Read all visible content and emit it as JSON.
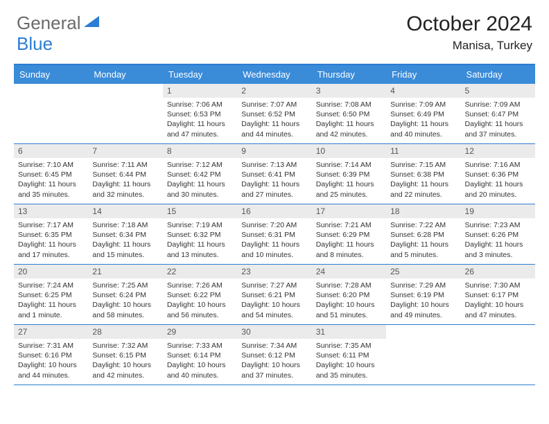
{
  "logo": {
    "general": "General",
    "blue": "Blue"
  },
  "title": "October 2024",
  "location": "Manisa, Turkey",
  "colors": {
    "accent": "#2d7dd2",
    "header_bg": "#3a8bd8",
    "daynum_bg": "#ebebeb",
    "text": "#333333",
    "logo_gray": "#6a6a6a"
  },
  "day_headers": [
    "Sunday",
    "Monday",
    "Tuesday",
    "Wednesday",
    "Thursday",
    "Friday",
    "Saturday"
  ],
  "weeks": [
    [
      {
        "n": "",
        "sunrise": "",
        "sunset": "",
        "daylight": ""
      },
      {
        "n": "",
        "sunrise": "",
        "sunset": "",
        "daylight": ""
      },
      {
        "n": "1",
        "sunrise": "Sunrise: 7:06 AM",
        "sunset": "Sunset: 6:53 PM",
        "daylight": "Daylight: 11 hours and 47 minutes."
      },
      {
        "n": "2",
        "sunrise": "Sunrise: 7:07 AM",
        "sunset": "Sunset: 6:52 PM",
        "daylight": "Daylight: 11 hours and 44 minutes."
      },
      {
        "n": "3",
        "sunrise": "Sunrise: 7:08 AM",
        "sunset": "Sunset: 6:50 PM",
        "daylight": "Daylight: 11 hours and 42 minutes."
      },
      {
        "n": "4",
        "sunrise": "Sunrise: 7:09 AM",
        "sunset": "Sunset: 6:49 PM",
        "daylight": "Daylight: 11 hours and 40 minutes."
      },
      {
        "n": "5",
        "sunrise": "Sunrise: 7:09 AM",
        "sunset": "Sunset: 6:47 PM",
        "daylight": "Daylight: 11 hours and 37 minutes."
      }
    ],
    [
      {
        "n": "6",
        "sunrise": "Sunrise: 7:10 AM",
        "sunset": "Sunset: 6:45 PM",
        "daylight": "Daylight: 11 hours and 35 minutes."
      },
      {
        "n": "7",
        "sunrise": "Sunrise: 7:11 AM",
        "sunset": "Sunset: 6:44 PM",
        "daylight": "Daylight: 11 hours and 32 minutes."
      },
      {
        "n": "8",
        "sunrise": "Sunrise: 7:12 AM",
        "sunset": "Sunset: 6:42 PM",
        "daylight": "Daylight: 11 hours and 30 minutes."
      },
      {
        "n": "9",
        "sunrise": "Sunrise: 7:13 AM",
        "sunset": "Sunset: 6:41 PM",
        "daylight": "Daylight: 11 hours and 27 minutes."
      },
      {
        "n": "10",
        "sunrise": "Sunrise: 7:14 AM",
        "sunset": "Sunset: 6:39 PM",
        "daylight": "Daylight: 11 hours and 25 minutes."
      },
      {
        "n": "11",
        "sunrise": "Sunrise: 7:15 AM",
        "sunset": "Sunset: 6:38 PM",
        "daylight": "Daylight: 11 hours and 22 minutes."
      },
      {
        "n": "12",
        "sunrise": "Sunrise: 7:16 AM",
        "sunset": "Sunset: 6:36 PM",
        "daylight": "Daylight: 11 hours and 20 minutes."
      }
    ],
    [
      {
        "n": "13",
        "sunrise": "Sunrise: 7:17 AM",
        "sunset": "Sunset: 6:35 PM",
        "daylight": "Daylight: 11 hours and 17 minutes."
      },
      {
        "n": "14",
        "sunrise": "Sunrise: 7:18 AM",
        "sunset": "Sunset: 6:34 PM",
        "daylight": "Daylight: 11 hours and 15 minutes."
      },
      {
        "n": "15",
        "sunrise": "Sunrise: 7:19 AM",
        "sunset": "Sunset: 6:32 PM",
        "daylight": "Daylight: 11 hours and 13 minutes."
      },
      {
        "n": "16",
        "sunrise": "Sunrise: 7:20 AM",
        "sunset": "Sunset: 6:31 PM",
        "daylight": "Daylight: 11 hours and 10 minutes."
      },
      {
        "n": "17",
        "sunrise": "Sunrise: 7:21 AM",
        "sunset": "Sunset: 6:29 PM",
        "daylight": "Daylight: 11 hours and 8 minutes."
      },
      {
        "n": "18",
        "sunrise": "Sunrise: 7:22 AM",
        "sunset": "Sunset: 6:28 PM",
        "daylight": "Daylight: 11 hours and 5 minutes."
      },
      {
        "n": "19",
        "sunrise": "Sunrise: 7:23 AM",
        "sunset": "Sunset: 6:26 PM",
        "daylight": "Daylight: 11 hours and 3 minutes."
      }
    ],
    [
      {
        "n": "20",
        "sunrise": "Sunrise: 7:24 AM",
        "sunset": "Sunset: 6:25 PM",
        "daylight": "Daylight: 11 hours and 1 minute."
      },
      {
        "n": "21",
        "sunrise": "Sunrise: 7:25 AM",
        "sunset": "Sunset: 6:24 PM",
        "daylight": "Daylight: 10 hours and 58 minutes."
      },
      {
        "n": "22",
        "sunrise": "Sunrise: 7:26 AM",
        "sunset": "Sunset: 6:22 PM",
        "daylight": "Daylight: 10 hours and 56 minutes."
      },
      {
        "n": "23",
        "sunrise": "Sunrise: 7:27 AM",
        "sunset": "Sunset: 6:21 PM",
        "daylight": "Daylight: 10 hours and 54 minutes."
      },
      {
        "n": "24",
        "sunrise": "Sunrise: 7:28 AM",
        "sunset": "Sunset: 6:20 PM",
        "daylight": "Daylight: 10 hours and 51 minutes."
      },
      {
        "n": "25",
        "sunrise": "Sunrise: 7:29 AM",
        "sunset": "Sunset: 6:19 PM",
        "daylight": "Daylight: 10 hours and 49 minutes."
      },
      {
        "n": "26",
        "sunrise": "Sunrise: 7:30 AM",
        "sunset": "Sunset: 6:17 PM",
        "daylight": "Daylight: 10 hours and 47 minutes."
      }
    ],
    [
      {
        "n": "27",
        "sunrise": "Sunrise: 7:31 AM",
        "sunset": "Sunset: 6:16 PM",
        "daylight": "Daylight: 10 hours and 44 minutes."
      },
      {
        "n": "28",
        "sunrise": "Sunrise: 7:32 AM",
        "sunset": "Sunset: 6:15 PM",
        "daylight": "Daylight: 10 hours and 42 minutes."
      },
      {
        "n": "29",
        "sunrise": "Sunrise: 7:33 AM",
        "sunset": "Sunset: 6:14 PM",
        "daylight": "Daylight: 10 hours and 40 minutes."
      },
      {
        "n": "30",
        "sunrise": "Sunrise: 7:34 AM",
        "sunset": "Sunset: 6:12 PM",
        "daylight": "Daylight: 10 hours and 37 minutes."
      },
      {
        "n": "31",
        "sunrise": "Sunrise: 7:35 AM",
        "sunset": "Sunset: 6:11 PM",
        "daylight": "Daylight: 10 hours and 35 minutes."
      },
      {
        "n": "",
        "sunrise": "",
        "sunset": "",
        "daylight": ""
      },
      {
        "n": "",
        "sunrise": "",
        "sunset": "",
        "daylight": ""
      }
    ]
  ]
}
